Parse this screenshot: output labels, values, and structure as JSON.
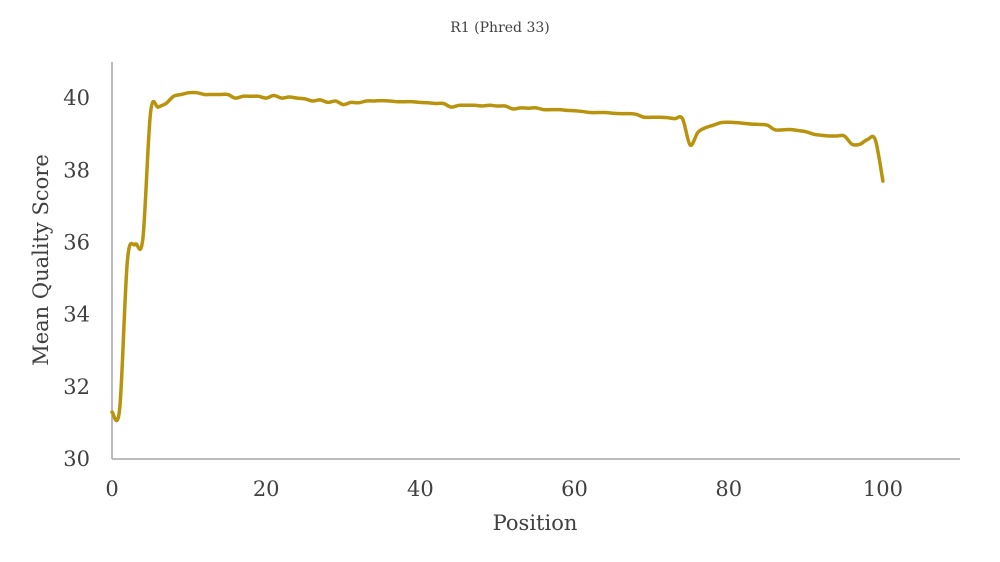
{
  "chart_data": {
    "type": "line",
    "title": "R1 (Phred 33)",
    "xlabel": "Position",
    "ylabel": "Mean Quality Score",
    "xlim": [
      0,
      110
    ],
    "ylim": [
      30,
      41
    ],
    "xticks": [
      0,
      20,
      40,
      60,
      80,
      100
    ],
    "yticks": [
      30,
      32,
      34,
      36,
      38,
      40
    ],
    "grid": false,
    "legend": "none",
    "series": [
      {
        "color": "#B8930E",
        "x": [
          0,
          1,
          2,
          3,
          4,
          5,
          6,
          7,
          8,
          9,
          10,
          11,
          12,
          13,
          14,
          15,
          16,
          17,
          18,
          19,
          20,
          21,
          22,
          23,
          24,
          25,
          26,
          27,
          28,
          29,
          30,
          31,
          32,
          33,
          34,
          35,
          36,
          37,
          38,
          39,
          40,
          41,
          42,
          43,
          44,
          45,
          46,
          47,
          48,
          49,
          50,
          51,
          52,
          53,
          54,
          55,
          56,
          57,
          58,
          59,
          60,
          61,
          62,
          63,
          64,
          65,
          66,
          67,
          68,
          69,
          70,
          71,
          72,
          73,
          74,
          75,
          76,
          77,
          78,
          79,
          80,
          81,
          82,
          83,
          84,
          85,
          86,
          87,
          88,
          89,
          90,
          91,
          92,
          93,
          94,
          95,
          96,
          97,
          98,
          99,
          100
        ],
        "y": [
          31.3,
          31.4,
          35.5,
          35.95,
          36.1,
          39.6,
          39.75,
          39.85,
          40.05,
          40.1,
          40.15,
          40.15,
          40.1,
          40.1,
          40.1,
          40.1,
          40.0,
          40.05,
          40.05,
          40.05,
          40.0,
          40.07,
          40.0,
          40.03,
          40.0,
          39.98,
          39.92,
          39.95,
          39.88,
          39.92,
          39.82,
          39.88,
          39.87,
          39.92,
          39.92,
          39.93,
          39.92,
          39.9,
          39.9,
          39.9,
          39.88,
          39.87,
          39.85,
          39.85,
          39.75,
          39.8,
          39.8,
          39.8,
          39.78,
          39.8,
          39.78,
          39.78,
          39.7,
          39.73,
          39.72,
          39.73,
          39.68,
          39.68,
          39.68,
          39.66,
          39.65,
          39.63,
          39.6,
          39.6,
          39.6,
          39.58,
          39.57,
          39.57,
          39.55,
          39.47,
          39.47,
          39.47,
          39.46,
          39.43,
          39.43,
          38.7,
          39.05,
          39.18,
          39.25,
          39.32,
          39.33,
          39.32,
          39.3,
          39.28,
          39.27,
          39.25,
          39.12,
          39.12,
          39.13,
          39.1,
          39.07,
          39.0,
          38.97,
          38.95,
          38.95,
          38.95,
          38.72,
          38.72,
          38.85,
          38.85,
          37.7
        ]
      }
    ]
  }
}
